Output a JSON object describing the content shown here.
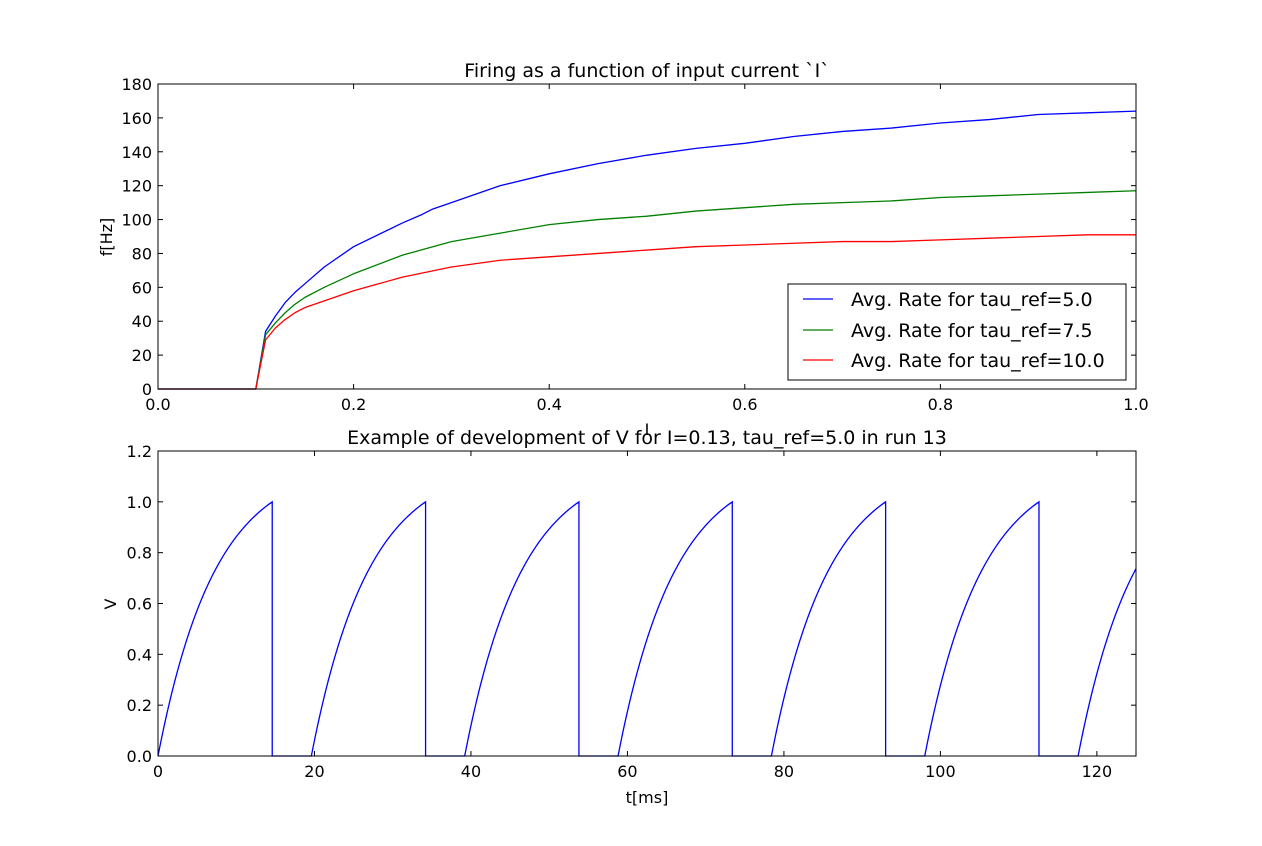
{
  "chart_data": [
    {
      "type": "line",
      "title": "Firing as a function of input current `I`",
      "xlabel": "I",
      "ylabel": "f[Hz]",
      "xlim": [
        0.0,
        1.0
      ],
      "ylim": [
        0,
        180
      ],
      "xticks": [
        "0.0",
        "0.2",
        "0.4",
        "0.6",
        "0.8",
        "1.0"
      ],
      "yticks": [
        "0",
        "20",
        "40",
        "60",
        "80",
        "100",
        "120",
        "140",
        "160",
        "180"
      ],
      "grid": false,
      "legend_position": "lower-right",
      "series": [
        {
          "name": "Avg. Rate for tau_ref=5.0",
          "color": "#0000ff",
          "x": [
            0,
            0.1,
            0.11,
            0.12,
            0.13,
            0.14,
            0.15,
            0.17,
            0.2,
            0.25,
            0.27,
            0.28,
            0.3,
            0.35,
            0.4,
            0.45,
            0.5,
            0.55,
            0.6,
            0.65,
            0.7,
            0.75,
            0.8,
            0.85,
            0.9,
            0.95,
            1.0
          ],
          "y": [
            0,
            0,
            34,
            43,
            51,
            57,
            62,
            72,
            84,
            98,
            103,
            106,
            110,
            120,
            127,
            133,
            138,
            142,
            145,
            149,
            152,
            154,
            157,
            159,
            162,
            163,
            164
          ]
        },
        {
          "name": "Avg. Rate for tau_ref=7.5",
          "color": "#008000",
          "x": [
            0,
            0.1,
            0.11,
            0.12,
            0.13,
            0.14,
            0.15,
            0.17,
            0.2,
            0.25,
            0.3,
            0.35,
            0.4,
            0.45,
            0.5,
            0.55,
            0.6,
            0.65,
            0.7,
            0.75,
            0.8,
            0.85,
            0.9,
            0.95,
            1.0
          ],
          "y": [
            0,
            0,
            32,
            39,
            45,
            50,
            54,
            60,
            68,
            79,
            87,
            92,
            97,
            100,
            102,
            105,
            107,
            109,
            110,
            111,
            113,
            114,
            115,
            116,
            117
          ]
        },
        {
          "name": "Avg. Rate for tau_ref=10.0",
          "color": "#ff0000",
          "x": [
            0,
            0.1,
            0.11,
            0.12,
            0.13,
            0.14,
            0.15,
            0.17,
            0.2,
            0.25,
            0.3,
            0.35,
            0.4,
            0.45,
            0.5,
            0.55,
            0.6,
            0.65,
            0.7,
            0.75,
            0.8,
            0.85,
            0.9,
            0.95,
            1.0
          ],
          "y": [
            0,
            0,
            29,
            36,
            41,
            45,
            48,
            52,
            58,
            66,
            72,
            76,
            78,
            80,
            82,
            84,
            85,
            86,
            87,
            87,
            88,
            89,
            90,
            91,
            91
          ]
        }
      ]
    },
    {
      "type": "line",
      "title": "Example of development of V for I=0.13, tau_ref=5.0 in run 13",
      "xlabel": "t[ms]",
      "ylabel": "V",
      "xlim": [
        0,
        125
      ],
      "ylim": [
        0.0,
        1.2
      ],
      "xticks": [
        "0",
        "20",
        "40",
        "60",
        "80",
        "100",
        "120"
      ],
      "yticks": [
        "0.0",
        "0.2",
        "0.4",
        "0.6",
        "0.8",
        "1.0",
        "1.2"
      ],
      "grid": false,
      "series": [
        {
          "color": "#0000ff",
          "spike_times": [
            14.6,
            34.2,
            53.8,
            73.4,
            93.0,
            112.6
          ],
          "refractory_period": 5.0,
          "peak": 1.0
        }
      ]
    }
  ]
}
